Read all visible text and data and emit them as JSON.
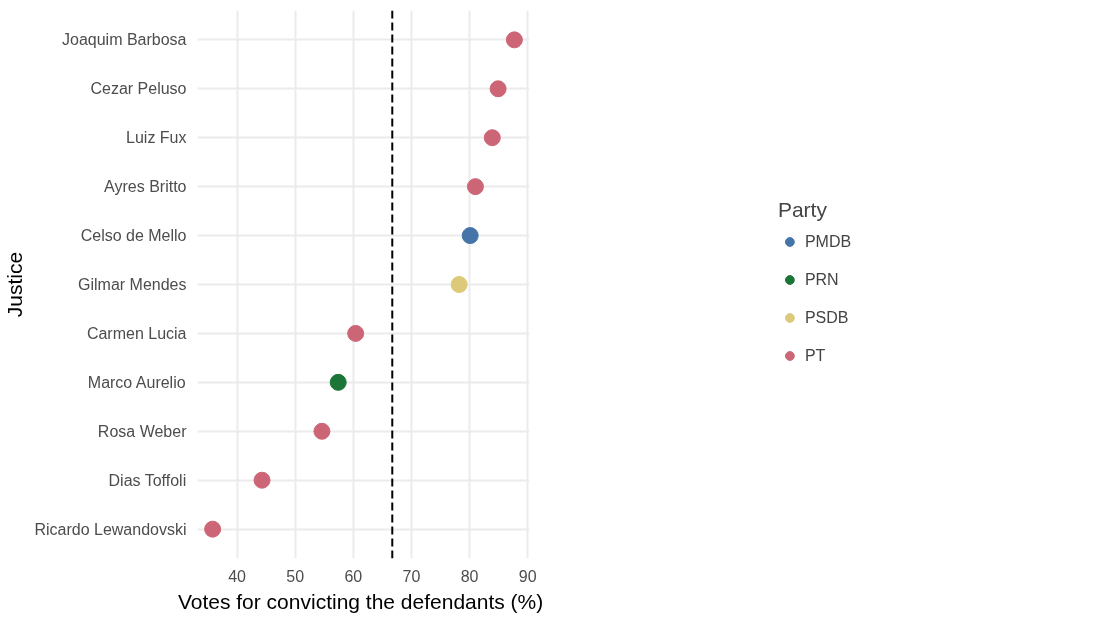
{
  "chart_data": {
    "type": "scatter",
    "orientation": "horizontal",
    "xlabel": "Votes for convicting the defendants  (%)",
    "ylabel": "Justice",
    "legend_title": "Party",
    "legend": "right",
    "grid": true,
    "marker": "circle",
    "categories": [
      "Joaquim Barbosa",
      "Cezar Peluso",
      "Luiz Fux",
      "Ayres Britto",
      "Celso de Mello",
      "Gilmar Mendes",
      "Carmen Lucia",
      "Marco Aurelio",
      "Rosa Weber",
      "Dias Toffoli",
      "Ricardo Lewandovski"
    ],
    "xlim": [
      33.2,
      90.3
    ],
    "xticks": [
      40,
      50,
      60,
      70,
      80,
      90
    ],
    "series": [
      {
        "name": "PMDB",
        "color": "#4575a8",
        "values": [
          null,
          null,
          null,
          null,
          80.1,
          null,
          null,
          null,
          null,
          null,
          null
        ]
      },
      {
        "name": "PRN",
        "color": "#1b7537",
        "values": [
          null,
          null,
          null,
          null,
          null,
          null,
          null,
          57.4,
          null,
          null,
          null
        ]
      },
      {
        "name": "PSDB",
        "color": "#dcca7a",
        "values": [
          null,
          null,
          null,
          null,
          null,
          78.2,
          null,
          null,
          null,
          null,
          null
        ]
      },
      {
        "name": "PT",
        "color": "#cc6677",
        "values": [
          87.7,
          84.9,
          83.9,
          81.0,
          null,
          null,
          60.4,
          null,
          54.6,
          44.3,
          35.8
        ]
      }
    ],
    "ref_lines": [
      {
        "axis": "x",
        "value": 66.7,
        "color": "#000000",
        "line_style": "dashed"
      }
    ]
  }
}
